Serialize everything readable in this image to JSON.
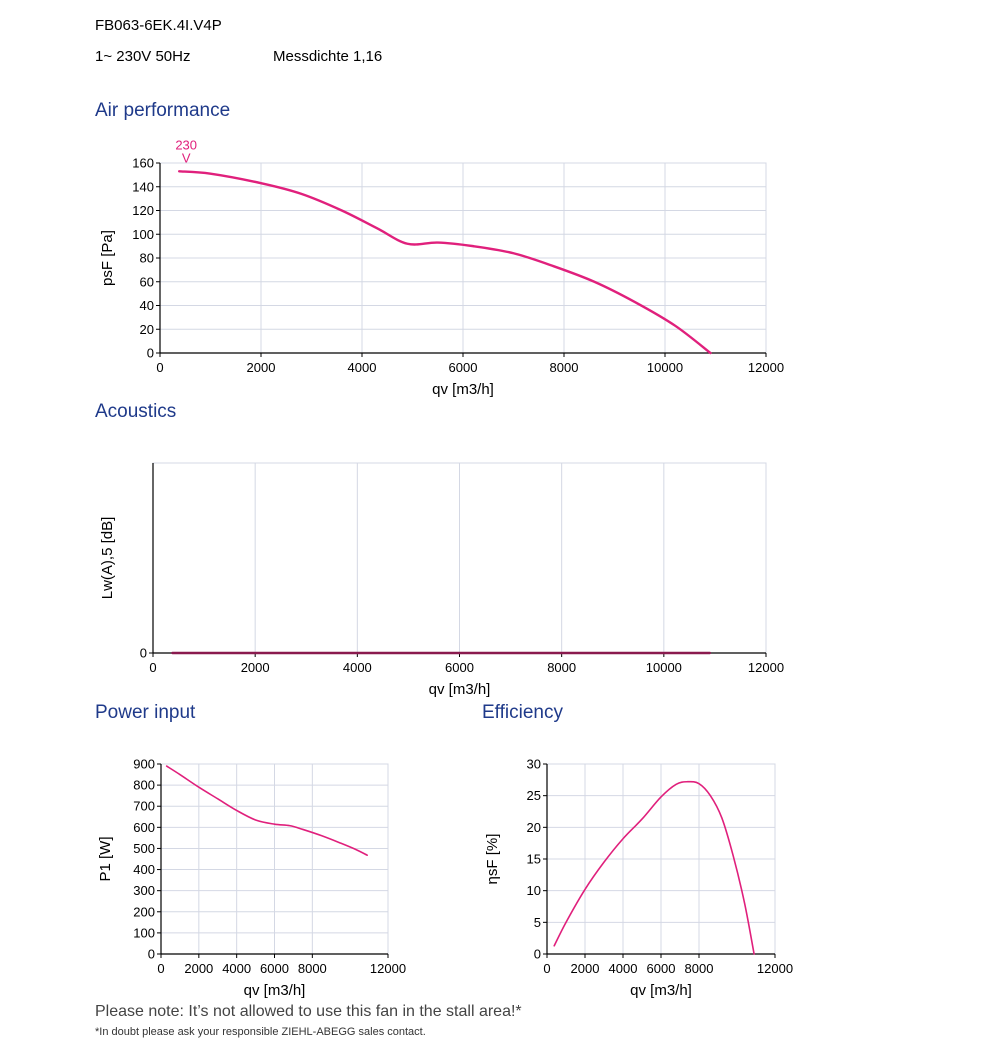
{
  "header": {
    "model": "FB063-6EK.4I.V4P",
    "supply": "1~ 230V 50Hz",
    "density": "Messdichte 1,16"
  },
  "footer": {
    "note": "Please note: It’s not allowed to use this fan in the stall area!*",
    "subnote": "*In doubt please ask your responsible ZIEHL-ABEGG sales contact."
  },
  "colors": {
    "curve": "#e0207c",
    "grid": "#d4d8e4",
    "title": "#1f3a8a"
  },
  "chart_data": [
    {
      "id": "air",
      "type": "line",
      "title": "Air performance",
      "xlabel": "qv [m3/h]",
      "ylabel": "psF [Pa]",
      "xlim": [
        0,
        12000
      ],
      "ylim": [
        0,
        160
      ],
      "xticks": [
        0,
        2000,
        4000,
        6000,
        8000,
        10000,
        12000
      ],
      "yticks": [
        0,
        20,
        40,
        60,
        80,
        100,
        120,
        140,
        160
      ],
      "grid": true,
      "series": [
        {
          "name": "230 V",
          "x": [
            380,
            1000,
            2000,
            2800,
            3600,
            4300,
            4900,
            5500,
            6200,
            7000,
            7800,
            8600,
            9400,
            10200,
            10900
          ],
          "y": [
            153,
            151,
            143,
            134,
            120,
            105,
            92,
            93,
            90,
            84,
            73,
            60,
            43,
            23,
            0
          ]
        }
      ]
    },
    {
      "id": "acoustics",
      "type": "line",
      "title": "Acoustics",
      "xlabel": "qv [m3/h]",
      "ylabel": "Lw(A),5 [dB]",
      "xlim": [
        0,
        12000
      ],
      "ylim": [
        0,
        1
      ],
      "xticks": [
        0,
        2000,
        4000,
        6000,
        8000,
        10000,
        12000
      ],
      "yticks": [
        0
      ],
      "grid": true,
      "series": [
        {
          "x": [
            380,
            10900
          ],
          "y": [
            0,
            0
          ]
        }
      ]
    },
    {
      "id": "power",
      "type": "line",
      "title": "Power input",
      "xlabel": "qv [m3/h]",
      "ylabel": "P1 [W]",
      "xlim": [
        0,
        12000
      ],
      "ylim": [
        0,
        900
      ],
      "xticks": [
        0,
        2000,
        4000,
        6000,
        8000,
        12000
      ],
      "yticks": [
        0,
        100,
        200,
        300,
        400,
        500,
        600,
        700,
        800,
        900
      ],
      "grid": true,
      "series": [
        {
          "x": [
            300,
            1000,
            2000,
            3000,
            4000,
            5000,
            6000,
            6800,
            7500,
            8500,
            9500,
            10300,
            10900
          ],
          "y": [
            890,
            850,
            790,
            735,
            680,
            635,
            615,
            608,
            590,
            560,
            525,
            495,
            468
          ]
        }
      ]
    },
    {
      "id": "efficiency",
      "type": "line",
      "title": "Efficiency",
      "xlabel": "qv [m3/h]",
      "ylabel": "ηsF [%]",
      "xlim": [
        0,
        12000
      ],
      "ylim": [
        0,
        30
      ],
      "xticks": [
        0,
        2000,
        4000,
        6000,
        8000,
        12000
      ],
      "yticks": [
        0,
        5,
        10,
        15,
        20,
        25,
        30
      ],
      "grid": true,
      "series": [
        {
          "x": [
            380,
            1000,
            2000,
            3000,
            4000,
            5000,
            6000,
            6800,
            7400,
            8000,
            8600,
            9200,
            9800,
            10400,
            10900
          ],
          "y": [
            1.3,
            5,
            10.2,
            14.5,
            18.2,
            21.3,
            24.8,
            26.8,
            27.2,
            26.9,
            25,
            21.5,
            15.5,
            8,
            0
          ]
        }
      ]
    }
  ]
}
